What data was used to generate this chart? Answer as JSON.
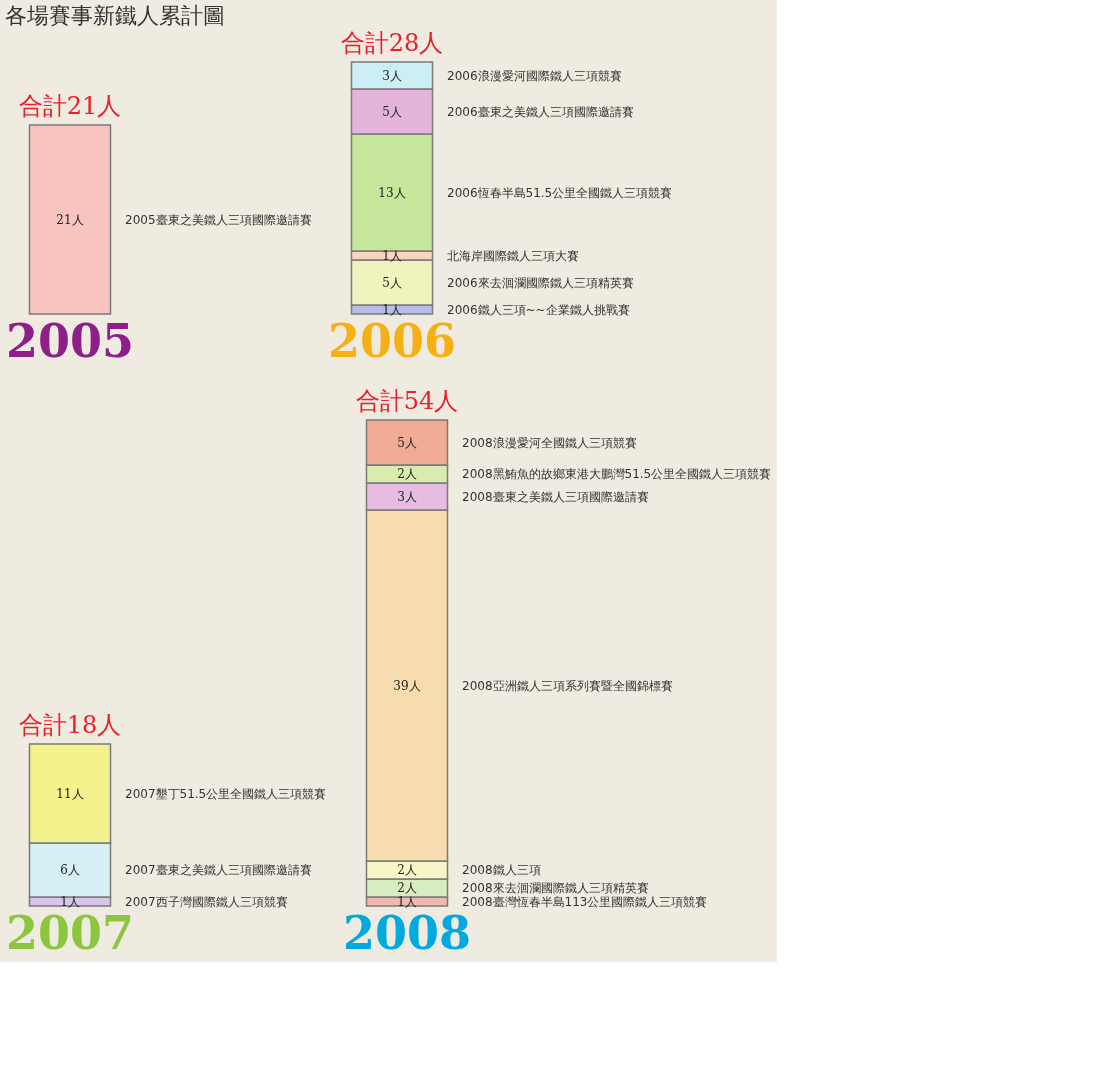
{
  "chart_data": [
    {
      "type": "bar",
      "stacked": true,
      "title": "各場賽事新鐵人累計圖",
      "categories": [
        "2005"
      ],
      "totals": [
        "合計21人"
      ],
      "series": [
        {
          "name": "2005臺東之美鐵人三項國際邀請賽",
          "color": "#f8c4c0",
          "values": [
            21
          ],
          "value_labels": [
            "21人"
          ]
        }
      ]
    },
    {
      "type": "bar",
      "stacked": true,
      "categories": [
        "2006"
      ],
      "totals": [
        "合計28人"
      ],
      "series": [
        {
          "name": "2006鐵人三項~~企業鐵人挑戰賽",
          "color": "#b9bde6",
          "values": [
            1
          ],
          "value_labels": [
            "1人"
          ]
        },
        {
          "name": "2006來去洄瀾國際鐵人三項精英賽",
          "color": "#f1f3bf",
          "values": [
            5
          ],
          "value_labels": [
            "5人"
          ]
        },
        {
          "name": "北海岸國際鐵人三項大賽",
          "color": "#fbd3bf",
          "values": [
            1
          ],
          "value_labels": [
            "1人"
          ]
        },
        {
          "name": "2006恆春半島51.5公里全國鐵人三項競賽",
          "color": "#c6e69c",
          "values": [
            13
          ],
          "value_labels": [
            "13人"
          ]
        },
        {
          "name": "2006臺東之美鐵人三項國際邀請賽",
          "color": "#e5b4dc",
          "values": [
            5
          ],
          "value_labels": [
            "5人"
          ]
        },
        {
          "name": "2006浪漫愛河國際鐵人三項競賽",
          "color": "#cdeef5",
          "values": [
            3
          ],
          "value_labels": [
            "3人"
          ]
        }
      ]
    },
    {
      "type": "bar",
      "stacked": true,
      "categories": [
        "2007"
      ],
      "totals": [
        "合計18人"
      ],
      "series": [
        {
          "name": "2007西子灣國際鐵人三項競賽",
          "color": "#d7c6ea",
          "values": [
            1
          ],
          "value_labels": [
            "1人"
          ]
        },
        {
          "name": "2007臺東之美鐵人三項國際邀請賽",
          "color": "#d6f0f5",
          "values": [
            6
          ],
          "value_labels": [
            "6人"
          ]
        },
        {
          "name": "2007墾丁51.5公里全國鐵人三項競賽",
          "color": "#f4f28c",
          "values": [
            11
          ],
          "value_labels": [
            "11人"
          ]
        }
      ]
    },
    {
      "type": "bar",
      "stacked": true,
      "categories": [
        "2008"
      ],
      "totals": [
        "合計54人"
      ],
      "series": [
        {
          "name": "2008臺灣恆春半島113公里國際鐵人三項競賽",
          "color": "#efb9b0",
          "values": [
            1
          ],
          "value_labels": [
            "1人"
          ]
        },
        {
          "name": "2008來去洄瀾國際鐵人三項精英賽",
          "color": "#d8ecc0",
          "values": [
            2
          ],
          "value_labels": [
            "2人"
          ]
        },
        {
          "name": "2008鐵人三項",
          "color": "#f8f6c6",
          "values": [
            2
          ],
          "value_labels": [
            "2人"
          ]
        },
        {
          "name": "2008亞洲鐵人三項系列賽暨全國錦標賽",
          "color": "#f6dcae",
          "values": [
            39
          ],
          "value_labels": [
            "39人"
          ]
        },
        {
          "name": "2008臺東之美鐵人三項國際邀請賽",
          "color": "#e6bde0",
          "values": [
            3
          ],
          "value_labels": [
            "3人"
          ]
        },
        {
          "name": "2008黑鮪魚的故鄉東港大鵬灣51.5公里全國鐵人三項競賽",
          "color": "#d8ecb0",
          "values": [
            2
          ],
          "value_labels": [
            "2人"
          ]
        },
        {
          "name": "2008浪漫愛河全國鐵人三項競賽",
          "color": "#efab95",
          "values": [
            5
          ],
          "value_labels": [
            "5人"
          ]
        }
      ]
    }
  ]
}
